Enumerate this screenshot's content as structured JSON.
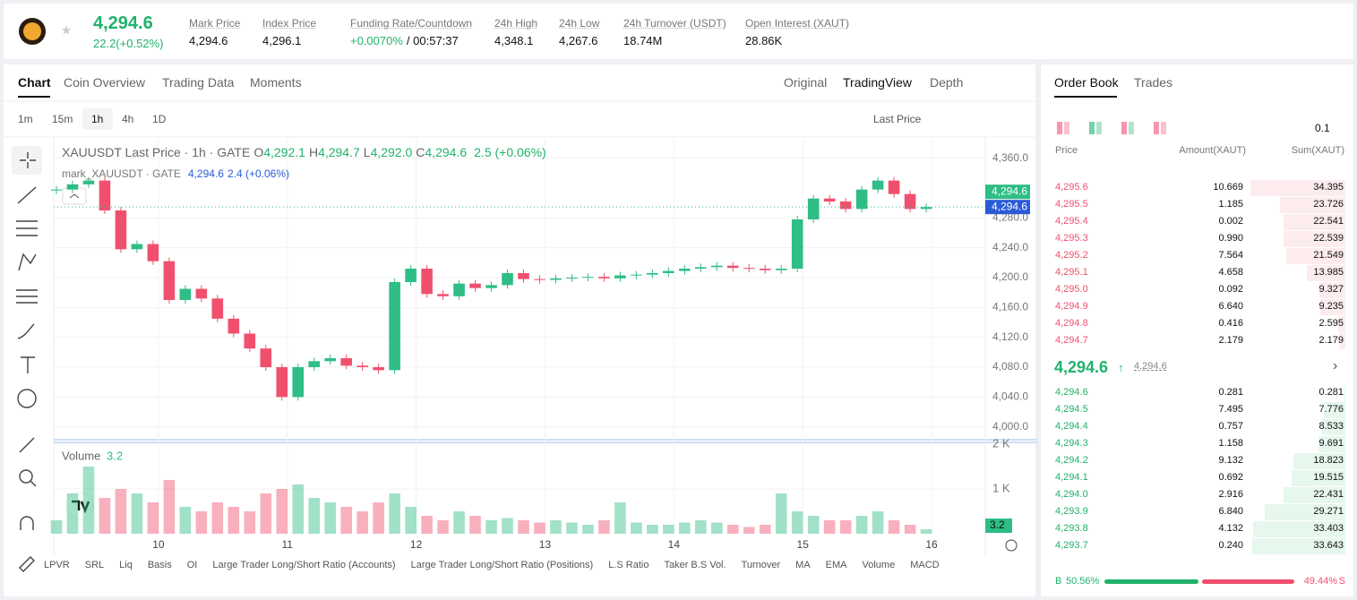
{
  "header": {
    "price": "4,294.6",
    "change": "22.2(+0.52%)",
    "stats": [
      {
        "label": "Mark Price",
        "value": "4,294.6"
      },
      {
        "label": "Index Price",
        "value": "4,296.1"
      },
      {
        "label": "Funding Rate/Countdown",
        "value": "+0.0070%",
        "extra": "/ 00:57:37"
      },
      {
        "label": "24h High",
        "value": "4,348.1"
      },
      {
        "label": "24h Low",
        "value": "4,267.6"
      },
      {
        "label": "24h Turnover (USDT)",
        "value": "18.74M"
      },
      {
        "label": "Open Interest (XAUT)",
        "value": "28.86K"
      }
    ]
  },
  "tabs": [
    "Chart",
    "Coin Overview",
    "Trading Data",
    "Moments"
  ],
  "views": [
    "Original",
    "TradingView",
    "Depth"
  ],
  "intervals": [
    "1m",
    "15m",
    "1h",
    "4h",
    "1D"
  ],
  "price_source": "Last Price",
  "legend": {
    "title": "XAUUSDT Last Price · 1h · GATE",
    "ohlc": [
      {
        "key": "O",
        "value": "4,292.1"
      },
      {
        "key": "H",
        "value": "4,294.7"
      },
      {
        "key": "L",
        "value": "4,292.0"
      },
      {
        "key": "C",
        "value": "4,294.6"
      }
    ],
    "change": "2.5 (+0.06%)",
    "mark": "mark_XAUUSDT · GATE",
    "mark_price": "4,294.6",
    "mark_change": "2.4 (+0.06%)"
  },
  "chart_data": {
    "type": "candlestick",
    "x": [
      0,
      3,
      6,
      9,
      12,
      15,
      18,
      21,
      24,
      27,
      30,
      33,
      36,
      39,
      42,
      45,
      48,
      51,
      54,
      57,
      60,
      63,
      66,
      69,
      72,
      75,
      78,
      81,
      84,
      87,
      90,
      93,
      96,
      99,
      102,
      105,
      108,
      111,
      114,
      117,
      120,
      123,
      126,
      129,
      132,
      135,
      138,
      141,
      144,
      147,
      150,
      153,
      156,
      159,
      162
    ],
    "close": [
      4318,
      4325,
      4330,
      4290,
      4238,
      4245,
      4222,
      4170,
      4185,
      4172,
      4145,
      4125,
      4105,
      4080,
      4040,
      4080,
      4088,
      4092,
      4082,
      4080,
      4076,
      4194,
      4212,
      4178,
      4175,
      4192,
      4186,
      4190,
      4206,
      4198,
      4197,
      4199,
      4200,
      4201,
      4199,
      4203,
      4204,
      4206,
      4209,
      4212,
      4214,
      4216,
      4213,
      4212,
      4210,
      4212,
      4278,
      4306,
      4302,
      4292,
      4318,
      4330,
      4312,
      4292,
      4294.6
    ],
    "ylim": [
      3984,
      4386
    ],
    "yticks": [
      {
        "value": 4000,
        "label": "4,000.0"
      },
      {
        "value": 4040,
        "label": "4,040.0"
      },
      {
        "value": 4080,
        "label": "4,080.0"
      },
      {
        "value": 4120,
        "label": "4,120.0"
      },
      {
        "value": 4160,
        "label": "4,160.0"
      },
      {
        "value": 4200,
        "label": "4,200.0"
      },
      {
        "value": 4240,
        "label": "4,240.0"
      },
      {
        "value": 4280,
        "label": "4,280.0"
      },
      {
        "value": 4360,
        "label": "4,360.0"
      }
    ],
    "xlim": [
      -0.5,
      173
    ],
    "xticks": [
      {
        "value": 19,
        "label": "10"
      },
      {
        "value": 43,
        "label": "11"
      },
      {
        "value": 67,
        "label": "12"
      },
      {
        "value": 91,
        "label": "13"
      },
      {
        "value": 115,
        "label": "14"
      },
      {
        "value": 139,
        "label": "15"
      },
      {
        "value": 163,
        "label": "16"
      }
    ],
    "last_price_labels": [
      "4,294.6",
      "4,294.6"
    ],
    "volume": {
      "name": "Volume",
      "current": "3.2",
      "values": [
        300,
        900,
        1500,
        800,
        1000,
        900,
        700,
        1200,
        600,
        500,
        700,
        600,
        500,
        900,
        1000,
        1100,
        800,
        700,
        600,
        500,
        700,
        900,
        600,
        400,
        300,
        500,
        400,
        300,
        350,
        300,
        250,
        300,
        250,
        200,
        300,
        700,
        250,
        200,
        200,
        250,
        300,
        250,
        200,
        150,
        200,
        900,
        500,
        400,
        300,
        300,
        400,
        500,
        300,
        200,
        100
      ],
      "ylim": [
        0,
        2000
      ],
      "yticks": [
        {
          "value": 1000,
          "label": "1 K"
        },
        {
          "value": 2000,
          "label": "2 K"
        }
      ],
      "last_label": "3.2"
    },
    "up_color": "#2ebd85",
    "down_color": "#f0506e"
  },
  "indicators": [
    "LPVR",
    "SRL",
    "Liq",
    "Basis",
    "OI",
    "Large Trader Long/Short Ratio (Accounts)",
    "Large Trader Long/Short Ratio (Positions)",
    "L.S Ratio",
    "Taker B.S Vol.",
    "Turnover",
    "MA",
    "EMA",
    "Volume",
    "MACD"
  ],
  "order_book": {
    "tabs": [
      "Order Book",
      "Trades"
    ],
    "precision": "0.1",
    "columns": [
      "Price",
      "Amount(XAUT)",
      "Sum(XAUT)"
    ],
    "asks": [
      [
        "4,295.6",
        "10.669",
        "34.395"
      ],
      [
        "4,295.5",
        "1.185",
        "23.726"
      ],
      [
        "4,295.4",
        "0.002",
        "22.541"
      ],
      [
        "4,295.3",
        "0.990",
        "22.539"
      ],
      [
        "4,295.2",
        "7.564",
        "21.549"
      ],
      [
        "4,295.1",
        "4.658",
        "13.985"
      ],
      [
        "4,295.0",
        "0.092",
        "9.327"
      ],
      [
        "4,294.9",
        "6.640",
        "9.235"
      ],
      [
        "4,294.8",
        "0.416",
        "2.595"
      ],
      [
        "4,294.7",
        "2.179",
        "2.179"
      ]
    ],
    "mid": "4,294.6",
    "mid_mark": "4,294.6",
    "bids": [
      [
        "4,294.6",
        "0.281",
        "0.281"
      ],
      [
        "4,294.5",
        "7.495",
        "7.776"
      ],
      [
        "4,294.4",
        "0.757",
        "8.533"
      ],
      [
        "4,294.3",
        "1.158",
        "9.691"
      ],
      [
        "4,294.2",
        "9.132",
        "18.823"
      ],
      [
        "4,294.1",
        "0.692",
        "19.515"
      ],
      [
        "4,294.0",
        "2.916",
        "22.431"
      ],
      [
        "4,293.9",
        "6.840",
        "29.271"
      ],
      [
        "4,293.8",
        "4.132",
        "33.403"
      ],
      [
        "4,293.7",
        "0.240",
        "33.643"
      ]
    ],
    "buy_label": "B",
    "buy_ratio": "50.56%",
    "sell_ratio": "49.44%",
    "sell_label": "S"
  }
}
